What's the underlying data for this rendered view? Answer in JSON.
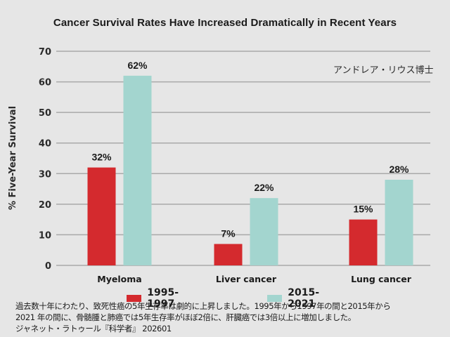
{
  "chart_data": {
    "type": "bar",
    "title": "Cancer Survival Rates Have Increased Dramatically in Recent Years",
    "xlabel": "",
    "ylabel": "% Five-Year Survival",
    "ylim": [
      0,
      70
    ],
    "yticks": [
      0,
      10,
      20,
      30,
      40,
      50,
      60,
      70
    ],
    "grid": true,
    "legend_position": "bottom",
    "categories": [
      "Myeloma",
      "Liver cancer",
      "Lung cancer"
    ],
    "series": [
      {
        "name": "1995-1997",
        "color": "#d42a2e",
        "values": [
          32,
          7,
          15
        ],
        "labels": [
          "32%",
          "7%",
          "15%"
        ]
      },
      {
        "name": "2015-2021",
        "color": "#a3d5cf",
        "values": [
          62,
          22,
          28
        ],
        "labels": [
          "62%",
          "22%",
          "28%"
        ]
      }
    ],
    "annotation": "アンドレア・リウス博士"
  },
  "caption": {
    "lines": [
      "過去数十年にわたり、致死性癌の5年生存率は劇的に上昇しました。1995年から1997年の間と2015年から",
      "2021 年の間に、骨髄腫と肺癌では5年生存率がほぼ2倍に、肝臓癌では3倍以上に増加しました。",
      "ジャネット・ラトゥール『科学者』 202601"
    ]
  }
}
